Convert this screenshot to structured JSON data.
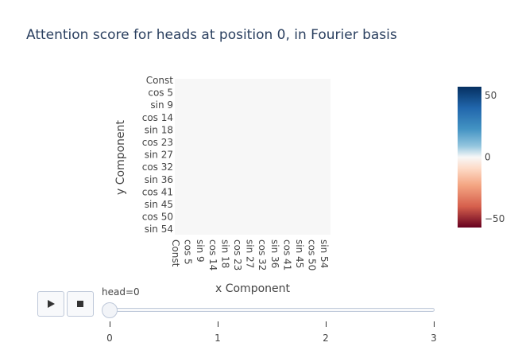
{
  "chart_data": {
    "type": "heatmap",
    "title": "Attention score for heads at position 0, in Fourier basis",
    "xlabel": "x Component",
    "ylabel": "y Component",
    "x_tick_labels": [
      "Const",
      "cos 5",
      "sin 9",
      "cos 14",
      "sin 18",
      "cos 23",
      "sin 27",
      "cos 32",
      "sin 36",
      "cos 41",
      "sin 45",
      "cos 50",
      "sin 54"
    ],
    "y_tick_labels": [
      "Const",
      "cos 5",
      "sin 9",
      "cos 14",
      "sin 18",
      "cos 23",
      "sin 27",
      "cos 32",
      "sin 36",
      "cos 41",
      "sin 45",
      "cos 50",
      "sin 54"
    ],
    "values_description_note_excluded": true,
    "background_value": 0,
    "colorbar": {
      "colorscale": "RdBu",
      "ticks": [
        50,
        0,
        -50
      ],
      "tick_labels": [
        "50",
        "0",
        "−50"
      ],
      "range": [
        -57,
        57
      ]
    }
  },
  "slider": {
    "current_label": "head=0",
    "steps": [
      "0",
      "1",
      "2",
      "3"
    ]
  },
  "controls": {
    "play_icon": "play-icon",
    "stop_icon": "stop-icon"
  },
  "colors": {
    "cell_neutral": "#f7f7f7",
    "title": "#2a3f5f"
  }
}
